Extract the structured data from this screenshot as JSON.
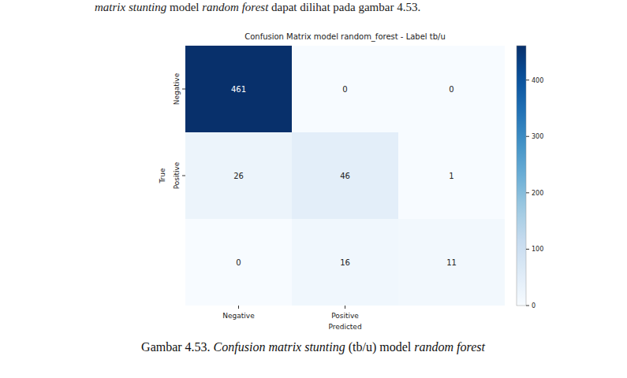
{
  "chart_data": {
    "type": "heatmap",
    "title": "Confusion Matrix model random_forest - Label tb/u",
    "x_label": "Predicted",
    "y_label": "True",
    "x_categories": [
      "Negative",
      "Positive",
      null
    ],
    "y_categories": [
      "Negative",
      "Positive",
      null
    ],
    "values": [
      [
        461,
        0,
        0
      ],
      [
        26,
        46,
        1
      ],
      [
        0,
        16,
        11
      ]
    ],
    "data_labels": true,
    "colorbar_range": [
      0,
      461
    ],
    "colorbar_ticks": [
      0,
      100,
      200,
      300,
      400
    ]
  },
  "page": {
    "intro_parts": [
      "matrix stunting",
      " model ",
      "random forest",
      " dapat dilihat pada gambar 4.53."
    ],
    "caption_parts": [
      "Gambar 4.53. ",
      "Confusion matrix stunting",
      " (tb/u) model ",
      "random forest"
    ]
  }
}
